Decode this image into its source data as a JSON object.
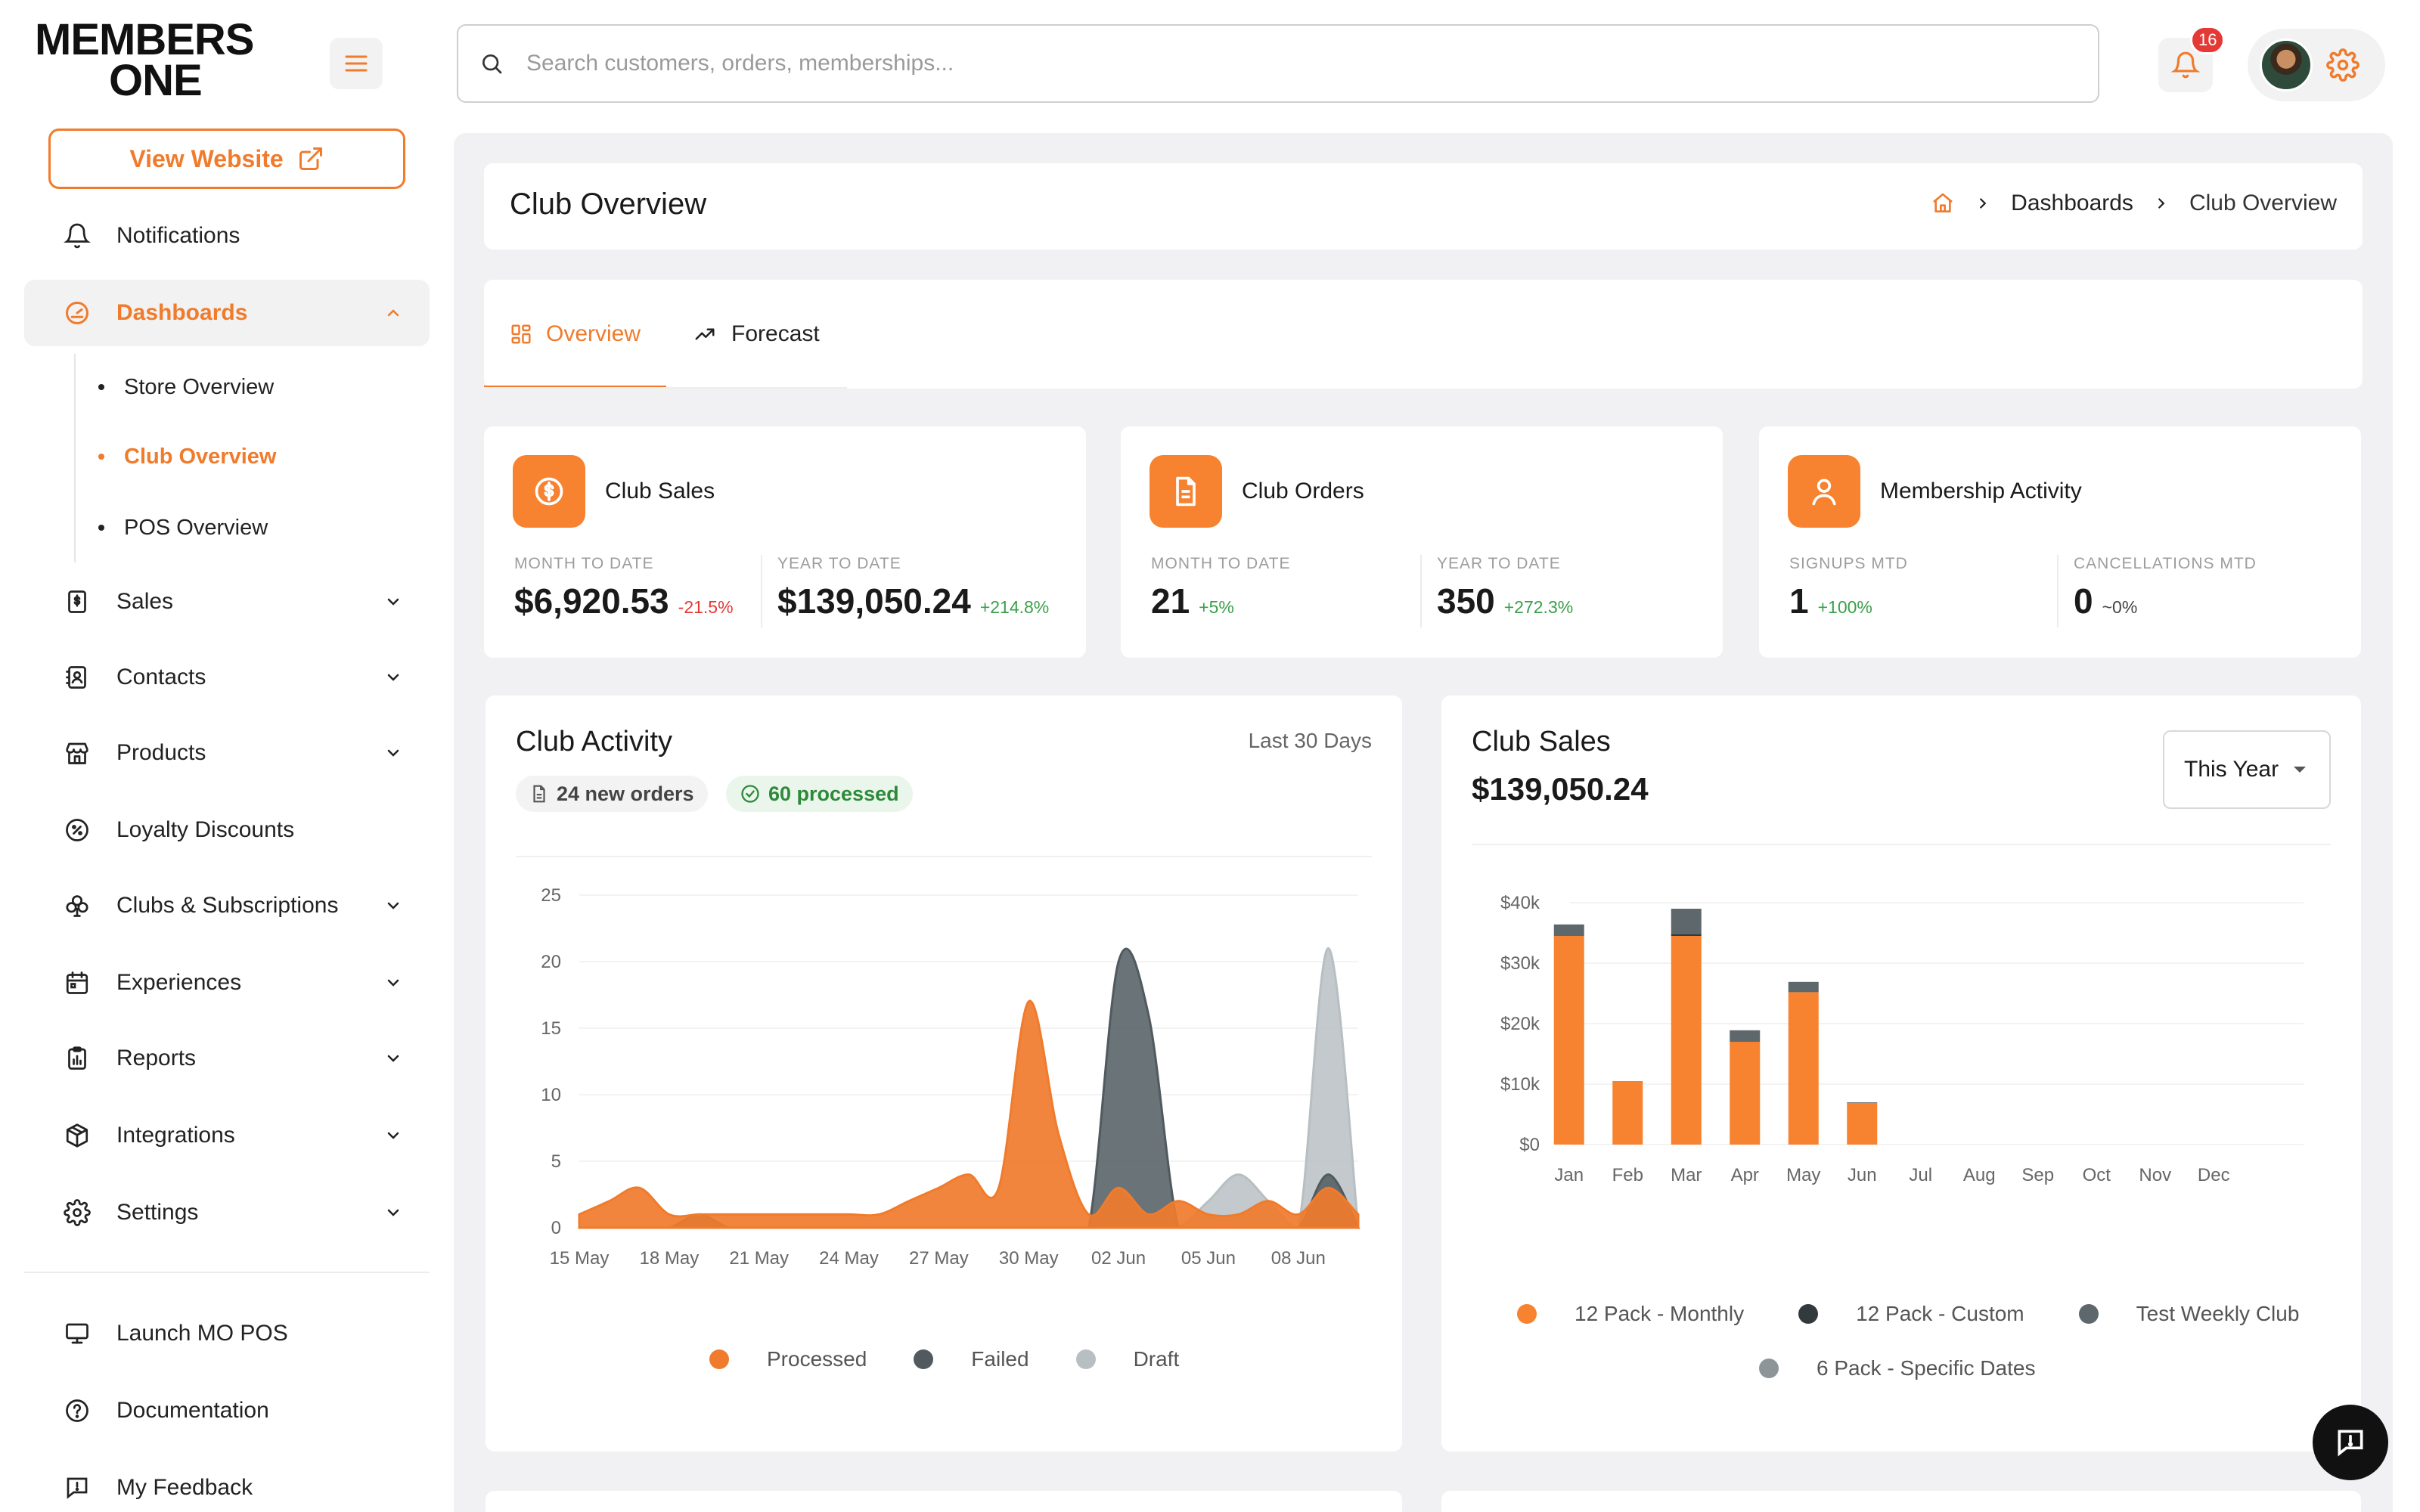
{
  "brand": {
    "line1": "MEMBERS",
    "line2": "ONE"
  },
  "sidebar": {
    "view_website": "View Website",
    "items": [
      {
        "label": "Notifications",
        "icon": "bell-icon"
      },
      {
        "label": "Dashboards",
        "icon": "gauge-icon"
      },
      {
        "label": "Sales",
        "icon": "receipt-dollar-icon"
      },
      {
        "label": "Contacts",
        "icon": "address-book-icon"
      },
      {
        "label": "Products",
        "icon": "store-icon"
      },
      {
        "label": "Loyalty Discounts",
        "icon": "percent-badge-icon"
      },
      {
        "label": "Clubs & Subscriptions",
        "icon": "club-icon"
      },
      {
        "label": "Experiences",
        "icon": "calendar-icon"
      },
      {
        "label": "Reports",
        "icon": "clipboard-chart-icon"
      },
      {
        "label": "Integrations",
        "icon": "cube-icon"
      },
      {
        "label": "Settings",
        "icon": "gear-icon"
      }
    ],
    "sub_items": [
      "Store Overview",
      "Club Overview",
      "POS Overview"
    ],
    "bottom_items": [
      {
        "label": "Launch MO POS",
        "icon": "monitor-icon"
      },
      {
        "label": "Documentation",
        "icon": "help-circle-icon"
      },
      {
        "label": "My Feedback",
        "icon": "feedback-icon"
      }
    ]
  },
  "search": {
    "placeholder": "Search customers, orders, memberships..."
  },
  "notifications": {
    "count": "16"
  },
  "header": {
    "title": "Club Overview",
    "breadcrumb": [
      "Dashboards",
      "Club Overview"
    ]
  },
  "tabs": [
    {
      "label": "Overview",
      "icon": "grid-icon"
    },
    {
      "label": "Forecast",
      "icon": "trend-up-icon"
    }
  ],
  "stats": [
    {
      "title": "Club Sales",
      "icon": "dollar-circle-icon",
      "left": {
        "label": "MONTH TO DATE",
        "value": "$6,920.53",
        "change": "-21.5%"
      },
      "right": {
        "label": "YEAR TO DATE",
        "value": "$139,050.24",
        "change": "+214.8%"
      }
    },
    {
      "title": "Club Orders",
      "icon": "document-icon",
      "left": {
        "label": "MONTH TO DATE",
        "value": "21",
        "change": "+5%"
      },
      "right": {
        "label": "YEAR TO DATE",
        "value": "350",
        "change": "+272.3%"
      }
    },
    {
      "title": "Membership Activity",
      "icon": "user-icon",
      "left": {
        "label": "SIGNUPS MTD",
        "value": "1",
        "change": "+100%"
      },
      "right": {
        "label": "CANCELLATIONS MTD",
        "value": "0",
        "change": "~0%"
      }
    }
  ],
  "activity": {
    "title": "Club Activity",
    "range": "Last 30 Days",
    "chip_orders": "24 new orders",
    "chip_processed": "60 processed",
    "legend": [
      "Processed",
      "Failed",
      "Draft"
    ]
  },
  "sales_panel": {
    "title": "Club Sales",
    "total": "$139,050.24",
    "period": "This Year",
    "legend": [
      "12 Pack - Monthly",
      "12 Pack - Custom",
      "Test Weekly Club",
      "6 Pack - Specific Dates"
    ]
  },
  "chart_data": [
    {
      "type": "area",
      "x": [
        "15 May",
        "16 May",
        "17 May",
        "18 May",
        "19 May",
        "20 May",
        "21 May",
        "22 May",
        "23 May",
        "24 May",
        "25 May",
        "26 May",
        "27 May",
        "28 May",
        "29 May",
        "30 May",
        "31 May",
        "01 Jun",
        "02 Jun",
        "03 Jun",
        "04 Jun",
        "05 Jun",
        "06 Jun",
        "07 Jun",
        "08 Jun",
        "09 Jun",
        "10 Jun"
      ],
      "x_tick_labels": [
        "15 May",
        "18 May",
        "21 May",
        "24 May",
        "27 May",
        "30 May",
        "02 Jun",
        "05 Jun",
        "08 Jun"
      ],
      "ylim": [
        0,
        25
      ],
      "y_ticks": [
        0,
        5,
        10,
        15,
        20,
        25
      ],
      "series": [
        {
          "name": "Processed",
          "color": "#f07b2c",
          "values": [
            1,
            2,
            3,
            1,
            1,
            1,
            1,
            1,
            1,
            1,
            1,
            2,
            3,
            4,
            3,
            17,
            7,
            1,
            3,
            1,
            2,
            1,
            1,
            2,
            1,
            3,
            1
          ]
        },
        {
          "name": "Failed",
          "color": "#505a5f",
          "values": [
            0,
            0,
            0,
            0,
            1,
            0,
            0,
            0,
            0,
            0,
            0,
            0,
            0,
            0,
            0,
            0,
            0,
            0,
            20,
            16,
            0,
            0,
            0,
            0,
            0,
            4,
            0
          ]
        },
        {
          "name": "Draft",
          "color": "#b8bfc3",
          "values": [
            0,
            0,
            0,
            0,
            0,
            0,
            0,
            0,
            0,
            0,
            0,
            0,
            0,
            0,
            0,
            0,
            0,
            0,
            0,
            0,
            0,
            2,
            4,
            2,
            0,
            21,
            0
          ]
        }
      ]
    },
    {
      "type": "bar",
      "stacked": true,
      "categories": [
        "Jan",
        "Feb",
        "Mar",
        "Apr",
        "May",
        "Jun",
        "Jul",
        "Aug",
        "Sep",
        "Oct",
        "Nov",
        "Dec"
      ],
      "ylim": [
        0,
        40000
      ],
      "y_tick_labels": [
        "$0",
        "$10k",
        "$20k",
        "$30k",
        "$40k"
      ],
      "y_ticks": [
        0,
        10000,
        20000,
        30000,
        40000
      ],
      "series": [
        {
          "name": "12 Pack - Monthly",
          "color": "#f7822f",
          "values": [
            34500,
            10500,
            34500,
            17000,
            25200,
            6900,
            0,
            0,
            0,
            0,
            0,
            0
          ]
        },
        {
          "name": "12 Pack - Custom",
          "color": "#333a3e",
          "values": [
            0,
            0,
            300,
            0,
            0,
            0,
            0,
            0,
            0,
            0,
            0,
            0
          ]
        },
        {
          "name": "Test Weekly Club",
          "color": "#5e676b",
          "values": [
            1900,
            0,
            4200,
            1900,
            1700,
            100,
            0,
            0,
            0,
            0,
            0,
            0
          ]
        },
        {
          "name": "6 Pack - Specific Dates",
          "color": "#8d9598",
          "values": [
            0,
            0,
            0,
            0,
            0,
            0,
            0,
            0,
            0,
            0,
            0,
            0
          ]
        }
      ],
      "legend_position": "bottom"
    }
  ]
}
